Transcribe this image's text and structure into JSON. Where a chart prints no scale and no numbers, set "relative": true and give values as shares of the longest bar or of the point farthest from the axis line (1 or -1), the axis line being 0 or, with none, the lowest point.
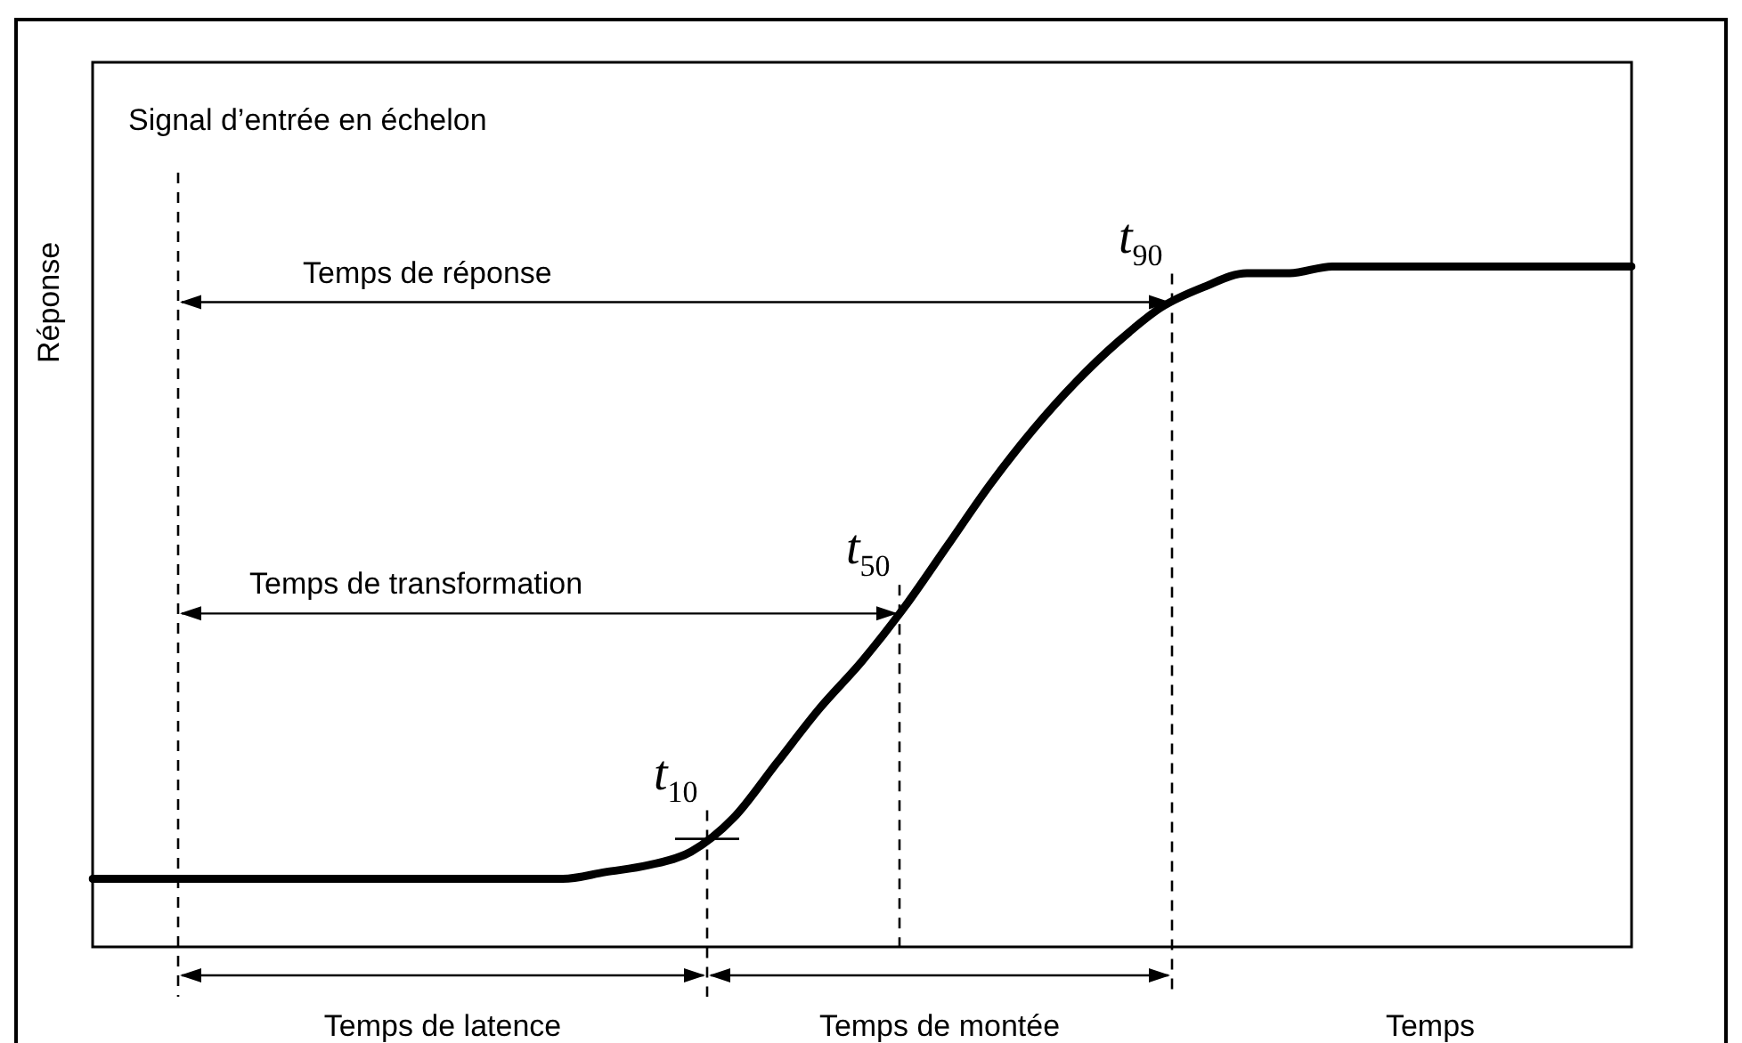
{
  "chart_data": {
    "type": "line",
    "relative": true,
    "categories": [
      null,
      null,
      null,
      null,
      null,
      null,
      null,
      null,
      null,
      null,
      null,
      null,
      null,
      null,
      null,
      null,
      null,
      null,
      null,
      null,
      null,
      null,
      null,
      null,
      null,
      null,
      null,
      null,
      null,
      null,
      null,
      null,
      null,
      null,
      null,
      null,
      null
    ],
    "series": [
      {
        "color": "#000000",
        "values": [
          0.1,
          0.1,
          0.1,
          0.1,
          0.1,
          0.1,
          0.1,
          0.1,
          0.1,
          0.1,
          0.1,
          0.1,
          0.11,
          0.12,
          0.14,
          0.19,
          0.27,
          0.35,
          0.42,
          0.5,
          0.59,
          0.68,
          0.76,
          0.83,
          0.89,
          0.94,
          0.97,
          0.99,
          0.99,
          1,
          1,
          1,
          1,
          1,
          1,
          1,
          1
        ]
      }
    ],
    "xlabel": "Temps",
    "ylabel": "Réponse",
    "annotations": [
      "Signal d’entrée en échelon",
      "t$_{10}$",
      "t$_{50}$",
      "t$_{90}$",
      "Temps de réponse",
      "Temps de transformation",
      "Temps de latence",
      "Temps de montée"
    ],
    "legend": false,
    "marker": "none",
    "line_style": "solid"
  }
}
